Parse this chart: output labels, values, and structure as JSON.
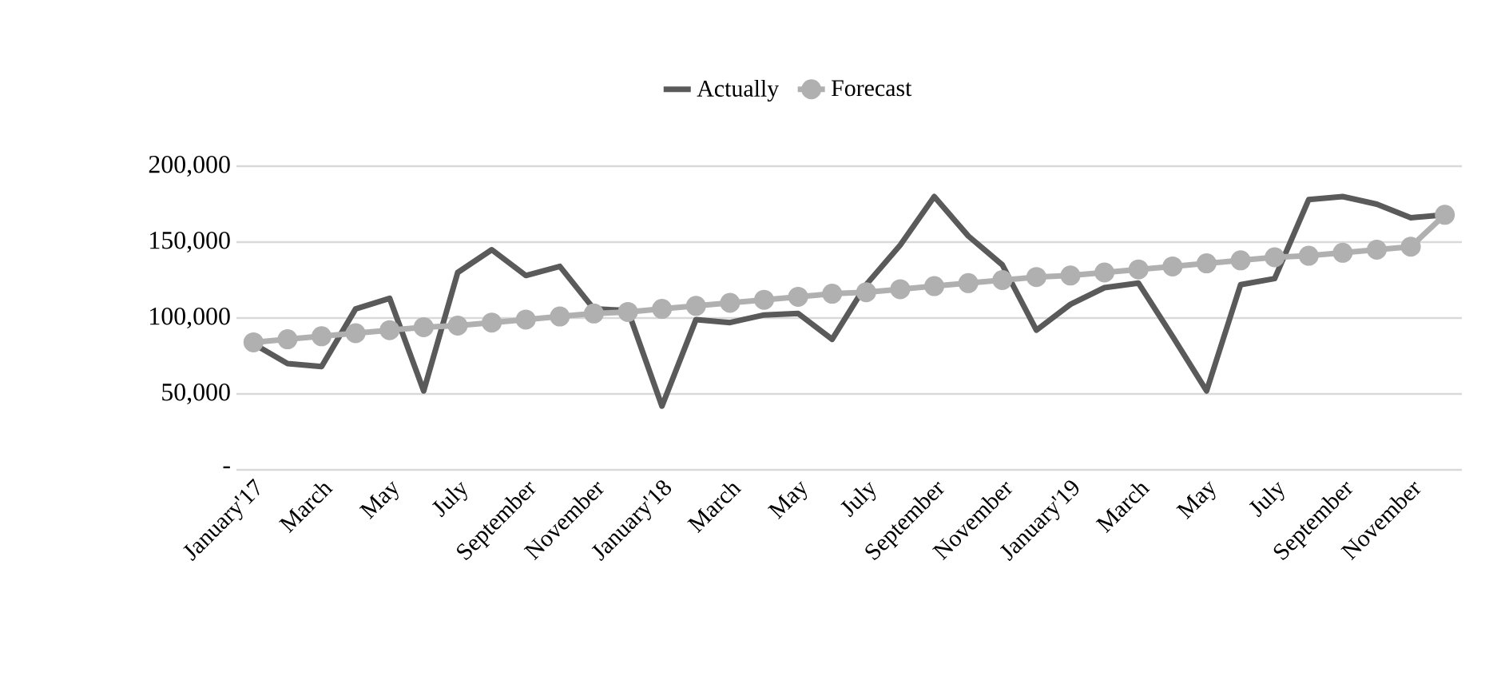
{
  "chart_data": {
    "type": "line",
    "categories": [
      "January'17",
      null,
      "March",
      null,
      "May",
      null,
      "July",
      null,
      "September",
      null,
      "November",
      null,
      "January'18",
      null,
      "March",
      null,
      "May",
      null,
      "July",
      null,
      "September",
      null,
      "November",
      null,
      "January'19",
      null,
      "March",
      null,
      "May",
      null,
      "July",
      null,
      "September",
      null,
      "November",
      null
    ],
    "series": [
      {
        "name": "Actually",
        "color": "#5a5a5a",
        "marker": "none",
        "values": [
          83000,
          70000,
          68000,
          106000,
          113000,
          52000,
          130000,
          145000,
          128000,
          134000,
          106000,
          105000,
          42000,
          99000,
          97000,
          102000,
          103000,
          86000,
          122000,
          148000,
          180000,
          154000,
          135000,
          92000,
          109000,
          120000,
          123000,
          88000,
          52000,
          122000,
          126000,
          178000,
          180000,
          175000,
          166000,
          168000
        ]
      },
      {
        "name": "Forecast",
        "color": "#b0b0b0",
        "marker": "circle",
        "values": [
          84000,
          86000,
          88000,
          90000,
          92000,
          94000,
          95000,
          97000,
          99000,
          101000,
          103000,
          104000,
          106000,
          108000,
          110000,
          112000,
          114000,
          116000,
          117000,
          119000,
          121000,
          123000,
          125000,
          127000,
          128000,
          130000,
          132000,
          134000,
          136000,
          138000,
          140000,
          141000,
          143000,
          145000,
          147000,
          168000
        ]
      }
    ],
    "ylim": [
      0,
      200000
    ],
    "yticks": [
      {
        "value": 0,
        "label": "-"
      },
      {
        "value": 50000,
        "label": "50,000"
      },
      {
        "value": 100000,
        "label": "100,000"
      },
      {
        "value": 150000,
        "label": "150,000"
      },
      {
        "value": 200000,
        "label": "200,000"
      }
    ],
    "grid": "y",
    "legend": "top",
    "line_style": "solid"
  }
}
